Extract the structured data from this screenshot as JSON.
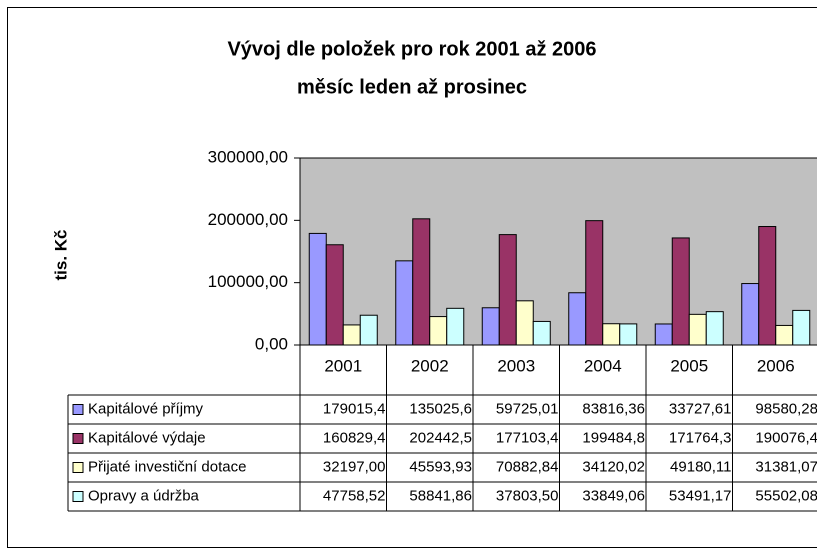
{
  "chart_data": {
    "type": "bar",
    "title": "Vývoj dle položek pro rok 2001 až 2006",
    "subtitle": "měsíc leden až prosinec",
    "ylabel": "tis. Kč",
    "categories": [
      "2001",
      "2002",
      "2003",
      "2004",
      "2005",
      "2006"
    ],
    "ylim": [
      0,
      300000
    ],
    "yticks": [
      {
        "value": 0,
        "label": "0,00"
      },
      {
        "value": 100000,
        "label": "100000,00"
      },
      {
        "value": 200000,
        "label": "200000,00"
      },
      {
        "value": 300000,
        "label": "300000,00"
      }
    ],
    "plot_background": "#c0c0c0",
    "series": [
      {
        "name": "Kapitálové příjmy",
        "color": "#9999ff",
        "values": [
          179015.4,
          135025.6,
          59725.01,
          83816.36,
          33727.61,
          98580.28
        ],
        "value_labels": [
          "179015,4",
          "135025,6",
          "59725,01",
          "83816,36",
          "33727,61",
          "98580,28"
        ]
      },
      {
        "name": "Kapitálové výdaje",
        "color": "#993366",
        "values": [
          160829.4,
          202442.5,
          177103.4,
          199484.8,
          171764.3,
          190076.4
        ],
        "value_labels": [
          "160829,4",
          "202442,5",
          "177103,4",
          "199484,8",
          "171764,3",
          "190076,4"
        ]
      },
      {
        "name": "Přijaté investiční dotace",
        "color": "#ffffcc",
        "values": [
          32197.0,
          45593.93,
          70882.84,
          34120.02,
          49180.11,
          31381.07
        ],
        "value_labels": [
          "32197,00",
          "45593,93",
          "70882,84",
          "34120,02",
          "49180,11",
          "31381,07"
        ]
      },
      {
        "name": "Opravy a údržba",
        "color": "#ccffff",
        "values": [
          47758.52,
          58841.86,
          37803.5,
          33849.06,
          53491.17,
          55502.08
        ],
        "value_labels": [
          "47758,52",
          "58841,86",
          "37803,50",
          "33849,06",
          "53491,17",
          "55502,08"
        ]
      }
    ]
  }
}
